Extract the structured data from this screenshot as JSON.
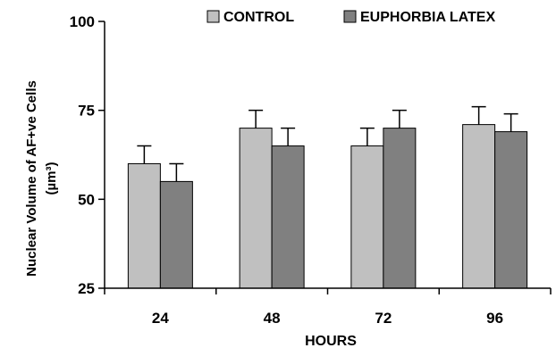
{
  "chart_data": {
    "type": "bar",
    "categories": [
      "24",
      "48",
      "72",
      "96"
    ],
    "series": [
      {
        "name": "CONTROL",
        "color": "#c0c0c0",
        "values": [
          60,
          70,
          65,
          71
        ],
        "errors": [
          5,
          5,
          5,
          5
        ]
      },
      {
        "name": "EUPHORBIA LATEX",
        "color": "#808080",
        "values": [
          55,
          65,
          70,
          69
        ],
        "errors": [
          5,
          5,
          5,
          5
        ]
      }
    ],
    "xlabel": "HOURS",
    "ylabel_line1": "Nuclear Volume of AF+ve Cells",
    "ylabel_line2": "(µm³)",
    "ylim": [
      25,
      100
    ],
    "yticks": [
      "25",
      "50",
      "75",
      "100"
    ],
    "grid": false,
    "legend_position": "top-right"
  }
}
